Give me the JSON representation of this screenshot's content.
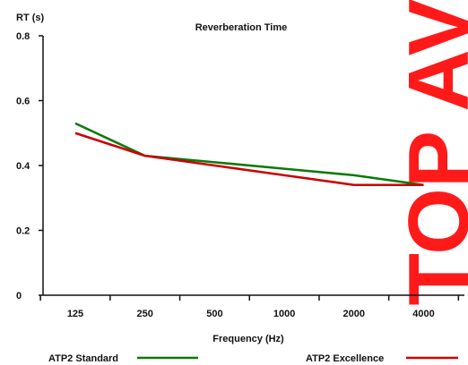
{
  "chart_data": {
    "type": "line",
    "title": "Reverberation Time",
    "xlabel": "Frequency (Hz)",
    "ylabel": "RT (s)",
    "categories": [
      "125",
      "250",
      "500",
      "1000",
      "2000",
      "4000"
    ],
    "ylim": [
      0,
      0.8
    ],
    "yticks": [
      "0",
      "0.2",
      "0.4",
      "0.6",
      "0.8"
    ],
    "grid": false,
    "legend_position": "bottom",
    "series": [
      {
        "name": "ATP2 Standard",
        "color": "#0a7a0a",
        "points": [
          {
            "x": 125,
            "y": 0.53
          },
          {
            "x": 250,
            "y": 0.43
          },
          {
            "x": 500,
            "y": 0.41
          },
          {
            "x": 1000,
            "y": 0.39
          },
          {
            "x": 2000,
            "y": 0.37
          },
          {
            "x": 4000,
            "y": 0.34
          }
        ]
      },
      {
        "name": "ATP2 Excellence",
        "color": "#cc0000",
        "points": [
          {
            "x": 125,
            "y": 0.5
          },
          {
            "x": 250,
            "y": 0.43
          },
          {
            "x": 500,
            "y": 0.4
          },
          {
            "x": 1000,
            "y": 0.37
          },
          {
            "x": 2000,
            "y": 0.34
          },
          {
            "x": 4000,
            "y": 0.34
          }
        ]
      }
    ]
  },
  "watermark": {
    "text": "TOP AV",
    "color": "#ff1a1a"
  }
}
